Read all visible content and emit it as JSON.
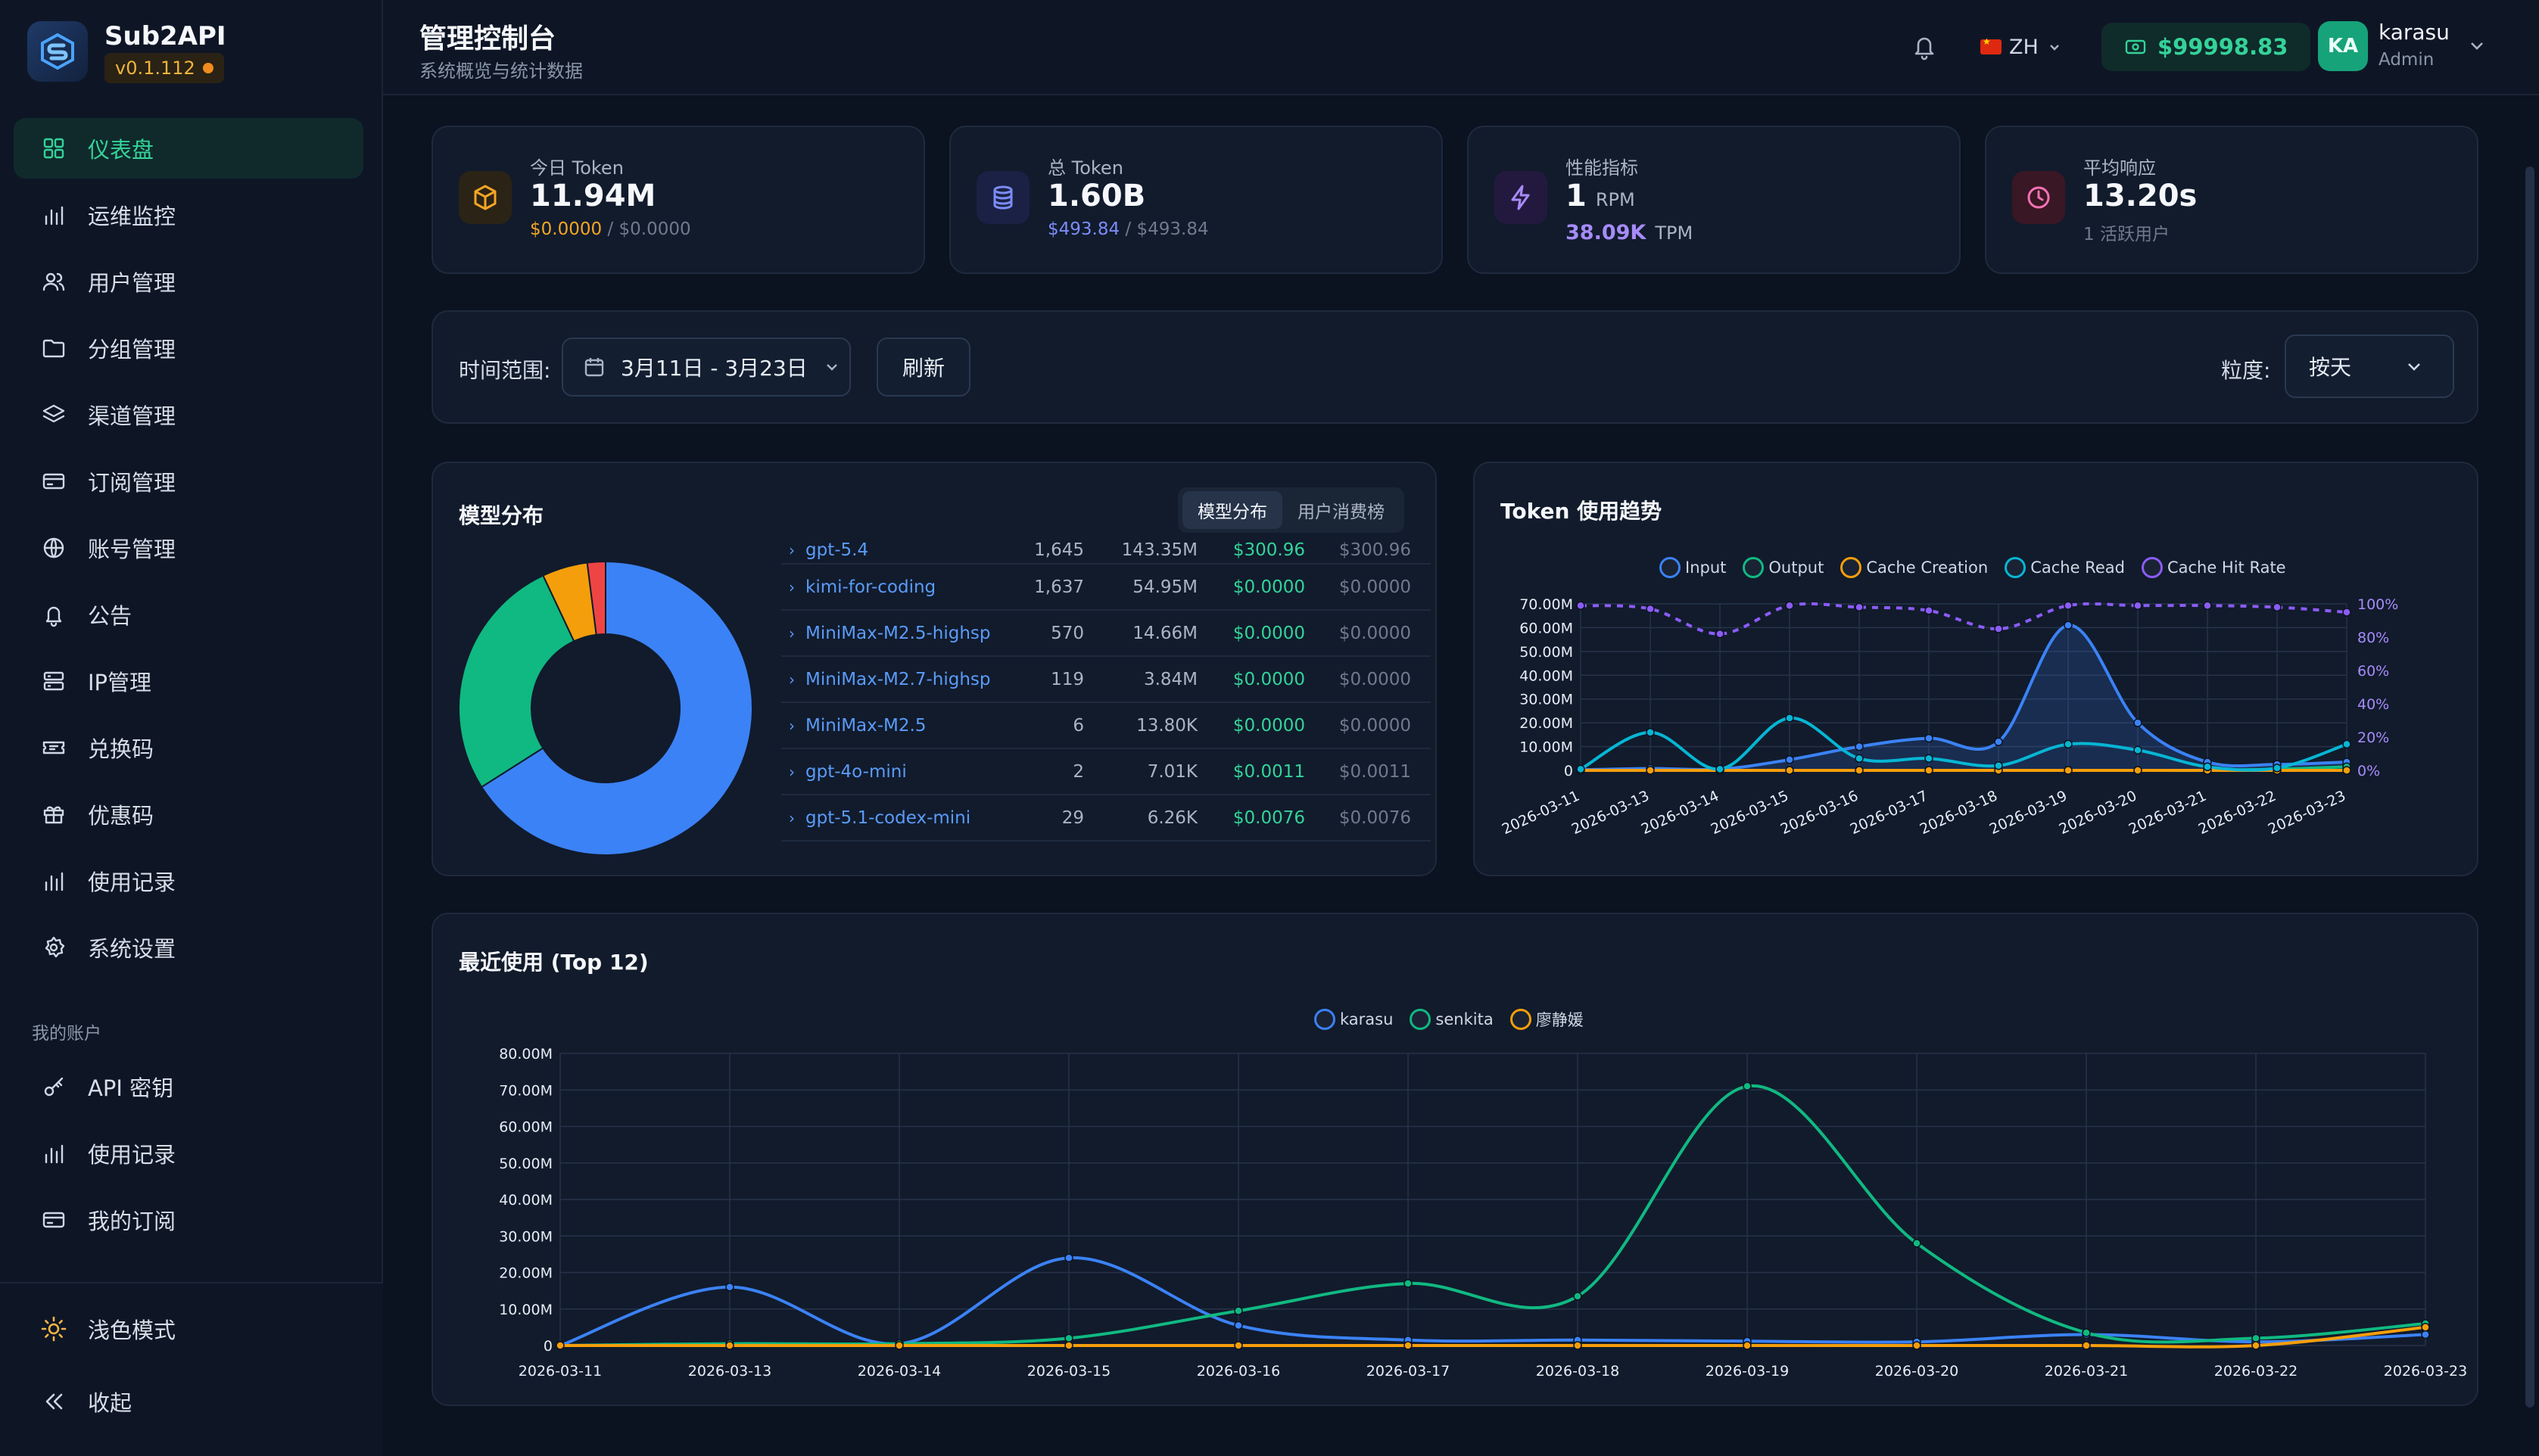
{
  "brand": {
    "name": "Sub2API",
    "version": "v0.1.112"
  },
  "sidebar": {
    "items": [
      {
        "label": "仪表盘",
        "icon": "grid-icon",
        "active": true
      },
      {
        "label": "运维监控",
        "icon": "bar-chart-icon"
      },
      {
        "label": "用户管理",
        "icon": "users-icon"
      },
      {
        "label": "分组管理",
        "icon": "folder-icon"
      },
      {
        "label": "渠道管理",
        "icon": "layers-icon"
      },
      {
        "label": "订阅管理",
        "icon": "credit-card-icon"
      },
      {
        "label": "账号管理",
        "icon": "globe-icon"
      },
      {
        "label": "公告",
        "icon": "bell-icon"
      },
      {
        "label": "IP管理",
        "icon": "server-icon"
      },
      {
        "label": "兑换码",
        "icon": "ticket-icon"
      },
      {
        "label": "优惠码",
        "icon": "gift-icon"
      },
      {
        "label": "使用记录",
        "icon": "bar-chart-icon"
      },
      {
        "label": "系统设置",
        "icon": "gear-icon"
      }
    ],
    "section_title": "我的账户",
    "account_items": [
      {
        "label": "API 密钥",
        "icon": "key-icon"
      },
      {
        "label": "使用记录",
        "icon": "bar-chart-icon"
      },
      {
        "label": "我的订阅",
        "icon": "credit-card-icon"
      }
    ],
    "theme_toggle": "浅色模式",
    "collapse": "收起"
  },
  "header": {
    "title": "管理控制台",
    "subtitle": "系统概览与统计数据",
    "lang": "ZH",
    "balance": "$99998.83",
    "avatar": "KA",
    "user": "karasu",
    "role": "Admin"
  },
  "stats": {
    "today_token": {
      "label": "今日 Token",
      "value": "11.94M",
      "cost": "$0.0000",
      "standard": "$0.0000",
      "separator": " / "
    },
    "total_token": {
      "label": "总 Token",
      "value": "1.60B",
      "cost": "$493.84",
      "standard": "$493.84",
      "separator": " / "
    },
    "performance": {
      "label": "性能指标",
      "rpm": "1",
      "rpm_unit": "RPM",
      "tpm": "38.09K",
      "tpm_unit": "TPM"
    },
    "avg_response": {
      "label": "平均响应",
      "value": "13.20s",
      "sub": "1 活跃用户"
    }
  },
  "filters": {
    "range_label": "时间范围:",
    "range_value": "3月11日 - 3月23日",
    "refresh": "刷新",
    "granularity_label": "粒度:",
    "granularity_value": "按天"
  },
  "model_dist": {
    "title": "模型分布",
    "tabs": [
      "模型分布",
      "用户消费榜"
    ],
    "active_tab": 0,
    "rows": [
      {
        "name": "gpt-5.4",
        "requests": "1,645",
        "tokens": "143.35M",
        "cost": "$300.96",
        "standard": "$300.96"
      },
      {
        "name": "kimi-for-coding",
        "requests": "1,637",
        "tokens": "54.95M",
        "cost": "$0.0000",
        "standard": "$0.0000"
      },
      {
        "name": "MiniMax-M2.5-highsp",
        "requests": "570",
        "tokens": "14.66M",
        "cost": "$0.0000",
        "standard": "$0.0000"
      },
      {
        "name": "MiniMax-M2.7-highsp",
        "requests": "119",
        "tokens": "3.84M",
        "cost": "$0.0000",
        "standard": "$0.0000"
      },
      {
        "name": "MiniMax-M2.5",
        "requests": "6",
        "tokens": "13.80K",
        "cost": "$0.0000",
        "standard": "$0.0000"
      },
      {
        "name": "gpt-4o-mini",
        "requests": "2",
        "tokens": "7.01K",
        "cost": "$0.0011",
        "standard": "$0.0011"
      },
      {
        "name": "gpt-5.1-codex-mini",
        "requests": "29",
        "tokens": "6.26K",
        "cost": "$0.0076",
        "standard": "$0.0076"
      }
    ]
  },
  "token_trend": {
    "title": "Token 使用趋势"
  },
  "recent": {
    "title": "最近使用 (Top 12)"
  },
  "chart_data": [
    {
      "type": "pie",
      "donut": true,
      "categories": [
        "gpt-5.4",
        "kimi-for-coding",
        "MiniMax-M2.5-highsp",
        "MiniMax-M2.7-highsp"
      ],
      "values": [
        66,
        27,
        5,
        2
      ],
      "colors": [
        "#3b82f6",
        "#10b981",
        "#f59e0b",
        "#ef4444"
      ]
    },
    {
      "type": "line",
      "x": [
        "2026-03-11",
        "2026-03-13",
        "2026-03-14",
        "2026-03-15",
        "2026-03-16",
        "2026-03-17",
        "2026-03-18",
        "2026-03-19",
        "2026-03-20",
        "2026-03-21",
        "2026-03-22",
        "2026-03-23"
      ],
      "ylim": [
        0,
        70000000
      ],
      "yticks": [
        "0",
        "10.00M",
        "20.00M",
        "30.00M",
        "40.00M",
        "50.00M",
        "60.00M",
        "70.00M"
      ],
      "y2lim": [
        0,
        100
      ],
      "y2ticks": [
        "0%",
        "20%",
        "40%",
        "60%",
        "80%",
        "100%"
      ],
      "grid": true,
      "legend": "top-center",
      "series": [
        {
          "name": "Input",
          "color": "#3b82f6",
          "axis": "left",
          "values": [
            0.2,
            0.8,
            0.5,
            4.5,
            10,
            13.5,
            12,
            61,
            20,
            3.5,
            2.5,
            3.5
          ]
        },
        {
          "name": "Output",
          "color": "#10b981",
          "axis": "left",
          "values": [
            0,
            0,
            0,
            0,
            0,
            0,
            0,
            0,
            0,
            0,
            0.5,
            1.5
          ]
        },
        {
          "name": "Cache Creation",
          "color": "#f59e0b",
          "axis": "left",
          "values": [
            0,
            0,
            0,
            0,
            0,
            0,
            0,
            0,
            0,
            0,
            0,
            0
          ]
        },
        {
          "name": "Cache Read",
          "color": "#06b6d4",
          "axis": "left",
          "values": [
            0.5,
            16,
            0.5,
            22,
            5,
            5,
            2,
            11,
            8.5,
            1.5,
            1,
            11
          ]
        },
        {
          "name": "Cache Hit Rate",
          "color": "#8b5cf6",
          "axis": "right",
          "dashed": true,
          "values": [
            99,
            97,
            82,
            99,
            98,
            96,
            85,
            99,
            99,
            99,
            98,
            95
          ]
        }
      ],
      "value_unit": "M"
    },
    {
      "type": "line",
      "x": [
        "2026-03-11",
        "2026-03-13",
        "2026-03-14",
        "2026-03-15",
        "2026-03-16",
        "2026-03-17",
        "2026-03-18",
        "2026-03-19",
        "2026-03-20",
        "2026-03-21",
        "2026-03-22",
        "2026-03-23"
      ],
      "ylim": [
        0,
        80000000
      ],
      "yticks": [
        "0",
        "10.00M",
        "20.00M",
        "30.00M",
        "40.00M",
        "50.00M",
        "60.00M",
        "70.00M",
        "80.00M"
      ],
      "grid": true,
      "legend": "top-center",
      "series": [
        {
          "name": "karasu",
          "color": "#3b82f6",
          "values": [
            0,
            16,
            0.5,
            24,
            5.5,
            1.5,
            1.5,
            1.2,
            1,
            3,
            1,
            3
          ]
        },
        {
          "name": "senkita",
          "color": "#10b981",
          "values": [
            0,
            0.5,
            0.5,
            2,
            9.5,
            17,
            13.5,
            71,
            28,
            3.5,
            2,
            6
          ]
        },
        {
          "name": "廖静媛",
          "color": "#f59e0b",
          "values": [
            0,
            0,
            0,
            0,
            0,
            0,
            0,
            0,
            0,
            0,
            0,
            5
          ]
        }
      ],
      "value_unit": "M"
    }
  ]
}
